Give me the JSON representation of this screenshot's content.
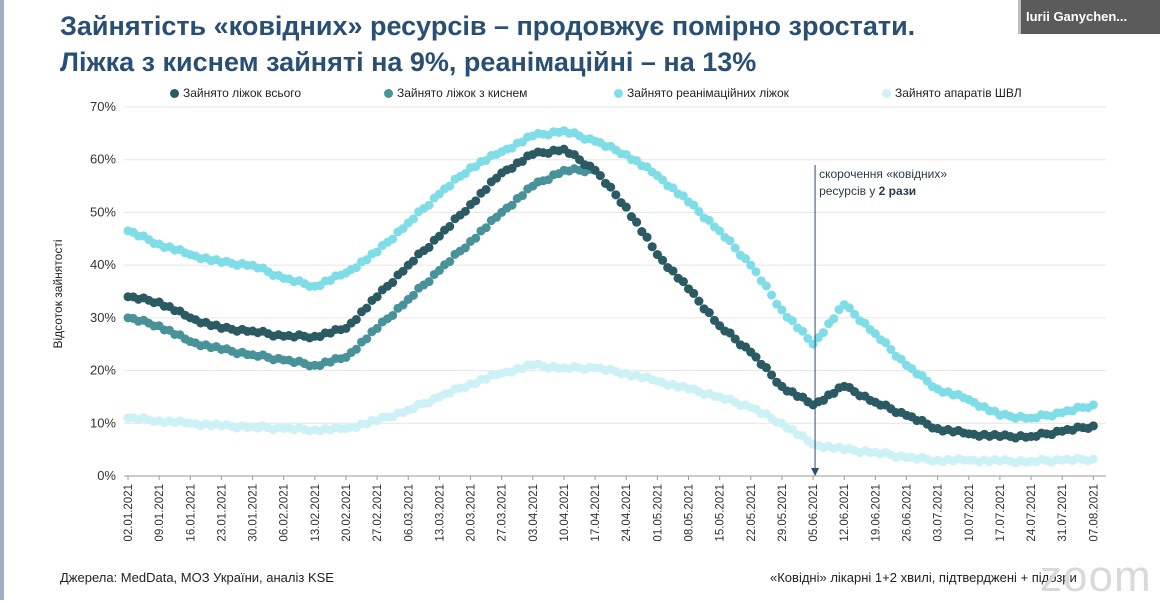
{
  "header": {
    "title_line1": "Зайнятість «ковідних» ресурсів – продовжує помірно зростати.",
    "title_line2": "Ліжка з киснем зайняті на 9%, реанімаційні – на 13%"
  },
  "participant": {
    "name": "Iurii Ganychen..."
  },
  "footer": {
    "source": "Джерела: MedData, МОЗ України, аналіз KSE",
    "note": "«Ковідні» лікарні 1+2 хвилі, підтверджені + підозри",
    "watermark": "zoom"
  },
  "colors": {
    "title": "#2a4f74",
    "total": "#2b5a63",
    "oxygen": "#48939a",
    "icu": "#7fdde8",
    "ventilator": "#cdf2f6"
  },
  "chart_data": {
    "type": "scatter",
    "title": "",
    "xlabel": "",
    "ylabel": "Відсоток зайнятості",
    "ylim": [
      0,
      70
    ],
    "yticks": [
      "0%",
      "10%",
      "20%",
      "30%",
      "40%",
      "50%",
      "60%",
      "70%"
    ],
    "x": [
      "02.01.2021",
      "09.01.2021",
      "16.01.2021",
      "23.01.2021",
      "30.01.2021",
      "06.02.2021",
      "13.02.2021",
      "20.02.2021",
      "27.02.2021",
      "06.03.2021",
      "13.03.2021",
      "20.03.2021",
      "27.03.2021",
      "03.04.2021",
      "10.04.2021",
      "17.04.2021",
      "24.04.2021",
      "01.05.2021",
      "08.05.2021",
      "15.05.2021",
      "22.05.2021",
      "29.05.2021",
      "05.06.2021",
      "12.06.2021",
      "19.06.2021",
      "26.06.2021",
      "03.07.2021",
      "10.07.2021",
      "17.07.2021",
      "24.07.2021",
      "31.07.2021",
      "07.08.2021"
    ],
    "series": [
      {
        "name": "Зайнято ліжок всього",
        "color": "#2b5a63",
        "values": [
          34,
          33,
          30,
          28,
          27.5,
          26.5,
          26.5,
          28,
          34,
          40,
          45.5,
          51.5,
          57.5,
          61,
          62,
          58,
          51,
          42,
          35.5,
          28.5,
          23.5,
          17,
          13.5,
          17,
          14,
          11.5,
          9,
          8,
          7.5,
          7.5,
          8.5,
          9.5
        ]
      },
      {
        "name": "Зайнято ліжок з киснем",
        "color": "#48939a",
        "values": [
          30,
          28.5,
          25.5,
          24,
          23,
          22,
          21,
          22.5,
          28,
          33.5,
          39,
          44.5,
          50,
          55,
          58,
          58,
          51,
          42,
          35.5,
          28.5,
          23.5,
          17,
          13.5,
          17,
          14,
          11.5,
          9,
          8,
          7.5,
          7.5,
          8.5,
          9.5
        ]
      },
      {
        "name": "Зайнято реанімаційних ліжок",
        "color": "#7fdde8",
        "values": [
          46.5,
          44,
          42,
          40.5,
          40,
          37.5,
          36,
          38.5,
          42.5,
          48,
          53.5,
          58.5,
          61.5,
          64.5,
          65.5,
          63.5,
          61,
          57,
          52,
          46.5,
          40,
          31.5,
          25,
          32.5,
          27,
          21,
          16.5,
          14.5,
          11.5,
          11,
          12,
          13.5
        ]
      },
      {
        "name": "Зайнято апаратів ШВЛ",
        "color": "#cdf2f6",
        "values": [
          11,
          10.5,
          10,
          9.5,
          9.3,
          9,
          8.8,
          9,
          10.5,
          12.5,
          15,
          17.5,
          19.5,
          21,
          20.5,
          20.5,
          19.5,
          18,
          16.5,
          15,
          13,
          10,
          6,
          5,
          4.5,
          3.5,
          3,
          3,
          2.8,
          2.8,
          3,
          3.2
        ]
      }
    ],
    "annotations": [
      {
        "line1": "скорочення «ковідних»",
        "line2_prefix": "ресурсів у ",
        "line2_bold": "2 рази",
        "at": "05.06.2021"
      }
    ],
    "legend_position": "top"
  }
}
